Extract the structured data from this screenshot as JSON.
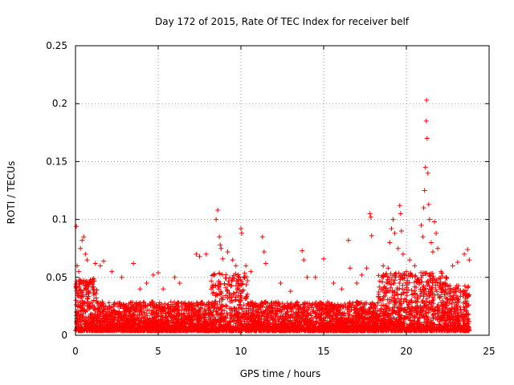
{
  "chart_data": {
    "type": "scatter",
    "title": "Day 172 of 2015, Rate Of TEC Index for receiver belf",
    "xlabel": "GPS time / hours",
    "ylabel": "ROTI / TECUs",
    "xlim": [
      0,
      25
    ],
    "ylim": [
      0,
      0.25
    ],
    "xticks": [
      0,
      5,
      10,
      15,
      20,
      25
    ],
    "yticks": [
      0,
      0.05,
      0.1,
      0.15,
      0.2,
      0.25
    ],
    "xtick_labels": [
      "0",
      "5",
      "10",
      "15",
      "20",
      "25"
    ],
    "ytick_labels": [
      "0",
      "0.05",
      "0.1",
      "0.15",
      "0.2",
      "0.25"
    ],
    "grid": true,
    "marker": "+",
    "series": [
      {
        "name": "ROTI",
        "color": "#ff0000",
        "points": [
          [
            0.05,
            0.094
          ],
          [
            0.1,
            0.06
          ],
          [
            0.2,
            0.055
          ],
          [
            0.3,
            0.075
          ],
          [
            0.4,
            0.082
          ],
          [
            0.5,
            0.085
          ],
          [
            0.6,
            0.07
          ],
          [
            0.7,
            0.065
          ],
          [
            1.2,
            0.062
          ],
          [
            1.5,
            0.06
          ],
          [
            1.7,
            0.064
          ],
          [
            2.2,
            0.055
          ],
          [
            2.8,
            0.05
          ],
          [
            3.5,
            0.062
          ],
          [
            3.9,
            0.04
          ],
          [
            4.3,
            0.045
          ],
          [
            4.7,
            0.052
          ],
          [
            5.0,
            0.054
          ],
          [
            5.3,
            0.04
          ],
          [
            6.0,
            0.05
          ],
          [
            6.3,
            0.045
          ],
          [
            7.3,
            0.07
          ],
          [
            7.5,
            0.068
          ],
          [
            7.9,
            0.07
          ],
          [
            8.5,
            0.1
          ],
          [
            8.6,
            0.108
          ],
          [
            8.7,
            0.085
          ],
          [
            8.75,
            0.078
          ],
          [
            8.8,
            0.075
          ],
          [
            8.9,
            0.066
          ],
          [
            9.2,
            0.072
          ],
          [
            9.5,
            0.065
          ],
          [
            9.7,
            0.06
          ],
          [
            10.0,
            0.092
          ],
          [
            10.05,
            0.088
          ],
          [
            10.3,
            0.06
          ],
          [
            10.6,
            0.055
          ],
          [
            11.3,
            0.085
          ],
          [
            11.4,
            0.072
          ],
          [
            11.5,
            0.062
          ],
          [
            12.4,
            0.045
          ],
          [
            13.0,
            0.038
          ],
          [
            13.7,
            0.073
          ],
          [
            13.8,
            0.065
          ],
          [
            14.0,
            0.05
          ],
          [
            14.5,
            0.05
          ],
          [
            15.0,
            0.066
          ],
          [
            15.6,
            0.045
          ],
          [
            16.1,
            0.04
          ],
          [
            16.5,
            0.082
          ],
          [
            16.6,
            0.058
          ],
          [
            17.0,
            0.045
          ],
          [
            17.3,
            0.052
          ],
          [
            17.6,
            0.058
          ],
          [
            17.8,
            0.105
          ],
          [
            17.85,
            0.102
          ],
          [
            17.9,
            0.086
          ],
          [
            18.6,
            0.06
          ],
          [
            18.9,
            0.058
          ],
          [
            19.0,
            0.08
          ],
          [
            19.1,
            0.092
          ],
          [
            19.2,
            0.1
          ],
          [
            19.3,
            0.088
          ],
          [
            19.5,
            0.075
          ],
          [
            19.6,
            0.112
          ],
          [
            19.65,
            0.105
          ],
          [
            19.7,
            0.09
          ],
          [
            19.8,
            0.07
          ],
          [
            20.0,
            0.055
          ],
          [
            20.2,
            0.065
          ],
          [
            20.5,
            0.06
          ],
          [
            20.9,
            0.095
          ],
          [
            21.0,
            0.085
          ],
          [
            21.05,
            0.11
          ],
          [
            21.1,
            0.125
          ],
          [
            21.15,
            0.145
          ],
          [
            21.2,
            0.185
          ],
          [
            21.22,
            0.203
          ],
          [
            21.25,
            0.17
          ],
          [
            21.3,
            0.14
          ],
          [
            21.35,
            0.113
          ],
          [
            21.4,
            0.1
          ],
          [
            21.5,
            0.08
          ],
          [
            21.6,
            0.072
          ],
          [
            21.7,
            0.098
          ],
          [
            21.8,
            0.088
          ],
          [
            21.9,
            0.075
          ],
          [
            22.1,
            0.055
          ],
          [
            22.4,
            0.05
          ],
          [
            22.8,
            0.06
          ],
          [
            23.1,
            0.063
          ],
          [
            23.5,
            0.07
          ],
          [
            23.7,
            0.074
          ],
          [
            23.8,
            0.065
          ]
        ]
      }
    ]
  }
}
